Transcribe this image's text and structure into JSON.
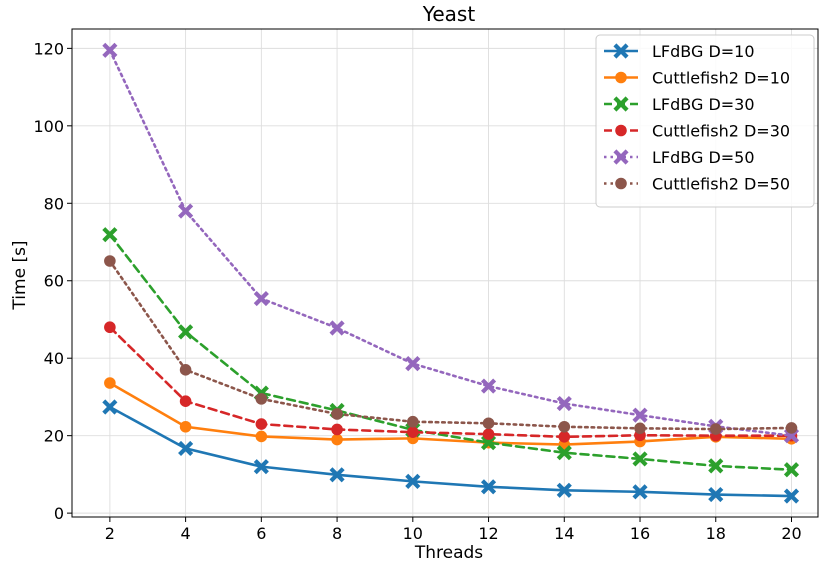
{
  "chart_data": {
    "type": "line",
    "title": "Yeast",
    "xlabel": "Threads",
    "ylabel": "Time [s]",
    "x": [
      2,
      4,
      6,
      8,
      10,
      12,
      14,
      16,
      18,
      20
    ],
    "xlim": [
      1,
      20.7
    ],
    "ylim": [
      -1,
      125
    ],
    "xticks": [
      2,
      4,
      6,
      8,
      10,
      12,
      14,
      16,
      18,
      20
    ],
    "yticks": [
      0,
      20,
      40,
      60,
      80,
      100,
      120
    ],
    "grid": true,
    "legend_position": "top-right",
    "series": [
      {
        "name": "LFdBG D=10",
        "color": "#1f77b4",
        "linestyle": "solid",
        "marker": "x",
        "values": [
          27.4,
          16.7,
          12.0,
          9.9,
          8.2,
          6.8,
          5.9,
          5.5,
          4.8,
          4.4
        ]
      },
      {
        "name": "Cuttlefish2 D=10",
        "color": "#ff7f0e",
        "linestyle": "solid",
        "marker": "o",
        "values": [
          33.6,
          22.3,
          19.8,
          19.0,
          19.3,
          18.2,
          17.7,
          18.5,
          19.7,
          19.2
        ]
      },
      {
        "name": "LFdBG D=30",
        "color": "#2ca02c",
        "linestyle": "dashed",
        "marker": "x",
        "values": [
          71.9,
          46.8,
          31.0,
          26.5,
          21.5,
          18.2,
          15.6,
          14.0,
          12.2,
          11.2
        ]
      },
      {
        "name": "Cuttlefish2 D=30",
        "color": "#d62728",
        "linestyle": "dashed",
        "marker": "o",
        "values": [
          48.0,
          28.9,
          23.0,
          21.6,
          20.9,
          20.4,
          19.7,
          20.1,
          20.0,
          20.0
        ]
      },
      {
        "name": "LFdBG D=50",
        "color": "#9467bd",
        "linestyle": "dotted",
        "marker": "x",
        "values": [
          119.5,
          78.0,
          55.4,
          47.8,
          38.6,
          32.8,
          28.3,
          25.3,
          22.4,
          20.0
        ]
      },
      {
        "name": "Cuttlefish2 D=50",
        "color": "#8c564b",
        "linestyle": "dotted",
        "marker": "o",
        "values": [
          65.1,
          37.0,
          29.5,
          25.6,
          23.6,
          23.2,
          22.3,
          21.9,
          21.7,
          22.0
        ]
      }
    ]
  }
}
